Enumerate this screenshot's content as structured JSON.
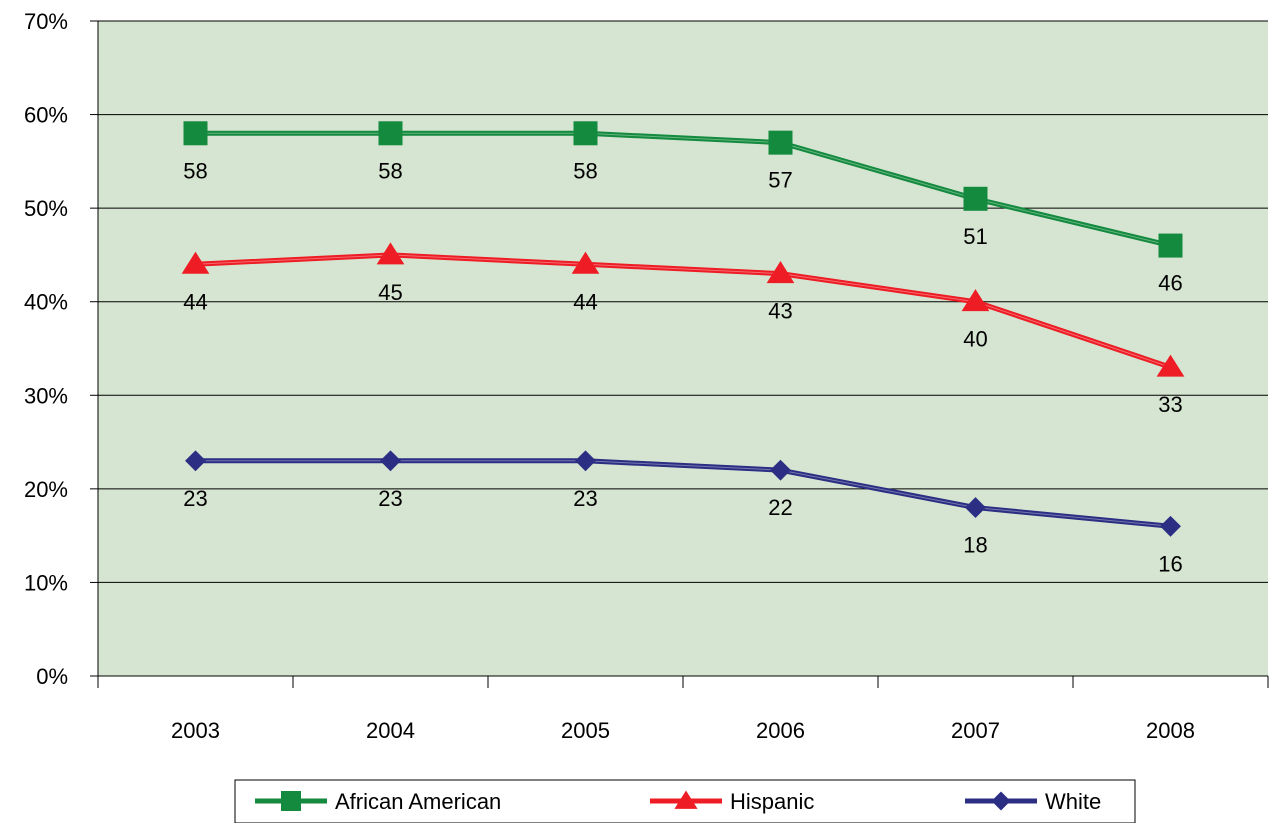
{
  "chart_data": {
    "type": "line",
    "categories": [
      "2003",
      "2004",
      "2005",
      "2006",
      "2007",
      "2008"
    ],
    "series": [
      {
        "name": "African American",
        "values": [
          58,
          58,
          58,
          57,
          51,
          46
        ],
        "color": "#138a3e",
        "marker": "square"
      },
      {
        "name": "Hispanic",
        "values": [
          44,
          45,
          44,
          43,
          40,
          33
        ],
        "color": "#ee1c24",
        "marker": "triangle"
      },
      {
        "name": "White",
        "values": [
          23,
          23,
          23,
          22,
          18,
          16
        ],
        "color": "#2b2e83",
        "marker": "diamond"
      }
    ],
    "y_ticks": [
      "0%",
      "10%",
      "20%",
      "30%",
      "40%",
      "50%",
      "60%",
      "70%"
    ],
    "ylim": [
      0,
      70
    ],
    "grid": true,
    "plot_background": "#d6e5d1",
    "legend_position": "bottom"
  }
}
